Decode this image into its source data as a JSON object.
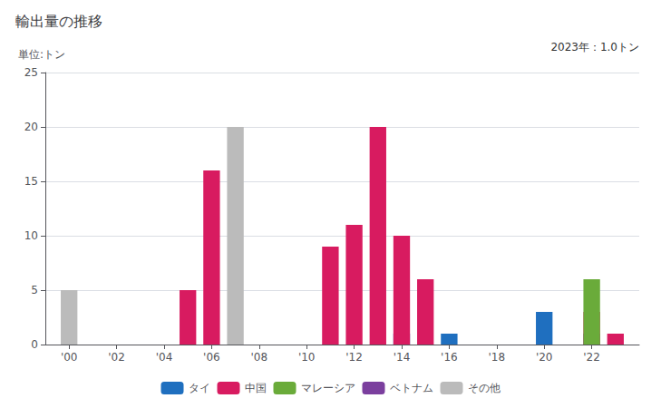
{
  "chart_data": {
    "type": "bar",
    "title": "輸出量の推移",
    "ylabel": "単位:トン",
    "annotation": "2023年：1.0トン",
    "x": [
      2000,
      2001,
      2002,
      2003,
      2004,
      2005,
      2006,
      2007,
      2008,
      2009,
      2010,
      2011,
      2012,
      2013,
      2014,
      2015,
      2016,
      2017,
      2018,
      2019,
      2020,
      2021,
      2022,
      2023
    ],
    "series": [
      {
        "name": "タイ",
        "color": "#1F6FBF",
        "values": [
          0,
          0,
          0,
          0,
          0,
          0,
          0,
          0,
          0,
          0,
          0,
          0,
          0,
          0,
          1,
          0,
          1,
          0,
          0,
          0,
          3,
          0,
          1,
          0
        ]
      },
      {
        "name": "中国",
        "color": "#D81B60",
        "values": [
          0,
          0,
          0,
          0,
          0,
          5,
          16,
          0,
          0,
          0,
          0,
          9,
          11,
          20,
          10,
          6,
          0,
          0,
          0,
          0,
          0,
          0,
          3,
          1
        ]
      },
      {
        "name": "マレーシア",
        "color": "#6AAB3A",
        "values": [
          0,
          0,
          0,
          0,
          0,
          0,
          0,
          0,
          0,
          0,
          0,
          0,
          0,
          0,
          0,
          0,
          0,
          0,
          0,
          0,
          0,
          0,
          6,
          0
        ]
      },
      {
        "name": "ベトナム",
        "color": "#7B3F9E",
        "values": [
          0,
          0,
          0,
          0,
          0,
          0,
          0,
          0,
          0,
          0,
          0,
          0,
          0,
          0,
          0,
          0,
          0,
          0,
          0,
          0,
          0,
          0,
          0,
          0
        ]
      },
      {
        "name": "その他",
        "color": "#BBBBBB",
        "values": [
          5,
          0,
          0,
          0,
          0,
          0,
          0,
          20,
          0,
          0,
          0,
          0,
          0,
          0,
          0,
          0,
          0,
          0,
          0,
          0,
          0,
          0,
          0,
          0
        ]
      }
    ],
    "stacked": true,
    "xlim": [
      1999,
      2024
    ],
    "xticks": [
      {
        "value": 2000,
        "label": "'00"
      },
      {
        "value": 2002,
        "label": "'02"
      },
      {
        "value": 2004,
        "label": "'04"
      },
      {
        "value": 2006,
        "label": "'06"
      },
      {
        "value": 2008,
        "label": "'08"
      },
      {
        "value": 2010,
        "label": "'10"
      },
      {
        "value": 2012,
        "label": "'12"
      },
      {
        "value": 2014,
        "label": "'14"
      },
      {
        "value": 2016,
        "label": "'16"
      },
      {
        "value": 2018,
        "label": "'18"
      },
      {
        "value": 2020,
        "label": "'20"
      },
      {
        "value": 2022,
        "label": "'22"
      }
    ],
    "ylim": [
      0,
      25
    ],
    "yticks": [
      0,
      5,
      10,
      15,
      20,
      25
    ],
    "grid": true,
    "legend": "bottom"
  }
}
